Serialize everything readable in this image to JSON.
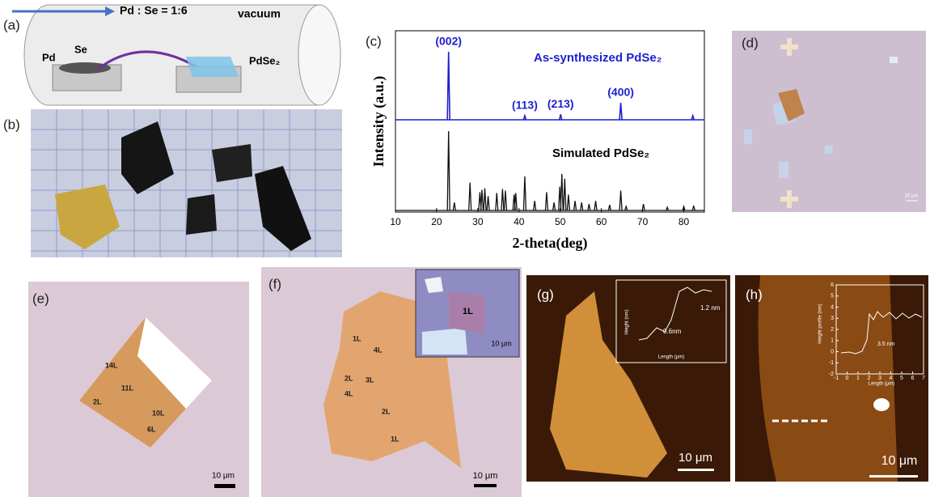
{
  "panels": {
    "a": {
      "label": "(a)",
      "ratio": "Pd : Se = 1:6",
      "vacuum": "vacuum",
      "pd": "Pd",
      "se": "Se",
      "product": "PdSe₂"
    },
    "b": {
      "label": "(b)"
    },
    "c": {
      "label": "(c)",
      "ylabel": "Intensity (a.u.)",
      "xlabel": "2-theta(deg)",
      "xlim": [
        10,
        85
      ],
      "xticks": [
        10,
        20,
        30,
        40,
        50,
        60,
        70,
        80
      ],
      "measured": {
        "name": "As-synthesized PdSe₂",
        "color": "#1f1fd0",
        "x": [
          22.9,
          41.4,
          50.1,
          64.7,
          82.2
        ],
        "heights": [
          100,
          6,
          8,
          25,
          6
        ],
        "peak_labels": [
          "(002)",
          "(113)",
          "(213)",
          "(400)",
          null
        ]
      },
      "simulated": {
        "name": "Simulated PdSe₂",
        "color": "#111111",
        "x": [
          22.9,
          24.3,
          28.1,
          30.5,
          31.0,
          31.7,
          32.5,
          34.6,
          36.0,
          36.7,
          38.8,
          39.2,
          41.4,
          43.8,
          46.7,
          48.5,
          49.9,
          50.4,
          51.1,
          52.0,
          53.6,
          55.2,
          57.0,
          58.6,
          62.0,
          64.7,
          66.0,
          70.2,
          76.0,
          80.0,
          82.4
        ],
        "heights": [
          100,
          10,
          35,
          23,
          26,
          28,
          18,
          22,
          27,
          25,
          20,
          22,
          43,
          12,
          23,
          10,
          30,
          46,
          40,
          20,
          12,
          10,
          8,
          12,
          7,
          25,
          5,
          8,
          4,
          5,
          6
        ]
      }
    },
    "d": {
      "label": "(d)",
      "scale": "10 μm"
    },
    "e": {
      "label": "(e)",
      "layers": [
        "14L",
        "11L",
        "2L",
        "10L",
        "6L"
      ],
      "scale": "10 μm"
    },
    "f": {
      "label": "(f)",
      "layers": [
        "1L",
        "4L",
        "2L",
        "3L",
        "4L",
        "2L",
        "1L"
      ],
      "scale": "10 μm",
      "inset_layer": "1L",
      "inset_scale": "10 μm"
    },
    "g": {
      "label": "(g)",
      "scale": "10 μm",
      "inset_ylabel": "Height (nm)",
      "inset_xlabel": "Length (μm)",
      "step1": "1.2 nm",
      "step2": "0.6nm"
    },
    "h": {
      "label": "(h)",
      "scale": "10 μm",
      "inset_ylabel": "Height profile (nm)",
      "inset_xlabel": "Length (μm)",
      "step": "3.5 nm",
      "inset_yticks": [
        -2,
        -1,
        0,
        1,
        2,
        3,
        4,
        5,
        6
      ],
      "inset_xticks": [
        -1,
        0,
        1,
        2,
        3,
        4,
        5,
        6,
        7
      ]
    }
  }
}
